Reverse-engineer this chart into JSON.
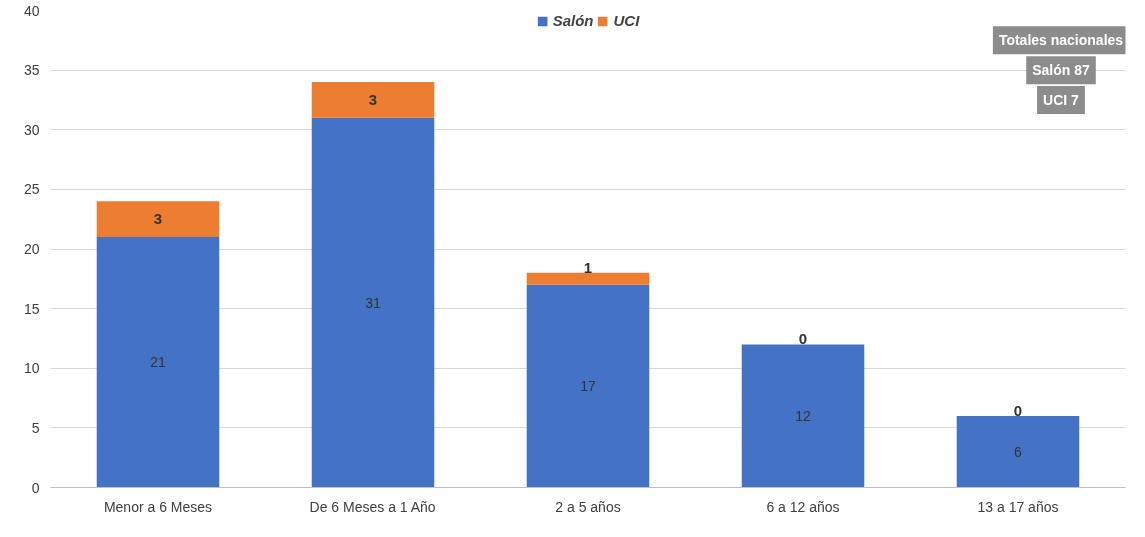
{
  "chart_data": {
    "type": "bar",
    "stacked": true,
    "categories": [
      "Menor a 6 Meses",
      "De 6 Meses a 1 Año",
      "2 a 5 años",
      "6 a 12 años",
      "13 a 17 años"
    ],
    "series": [
      {
        "name": "Salón",
        "color": "#4472c4",
        "values": [
          21,
          31,
          17,
          12,
          6
        ]
      },
      {
        "name": "UCI",
        "color": "#ed7d31",
        "values": [
          3,
          3,
          1,
          0,
          0
        ]
      }
    ],
    "ylim": [
      0,
      40
    ],
    "yticks": [
      0,
      5,
      10,
      15,
      20,
      25,
      30,
      35,
      40
    ],
    "grid": "y",
    "legend": "top",
    "data_labels": true,
    "annotations": [
      "Totales nacionales",
      "Salón 87",
      "UCI 7"
    ]
  }
}
